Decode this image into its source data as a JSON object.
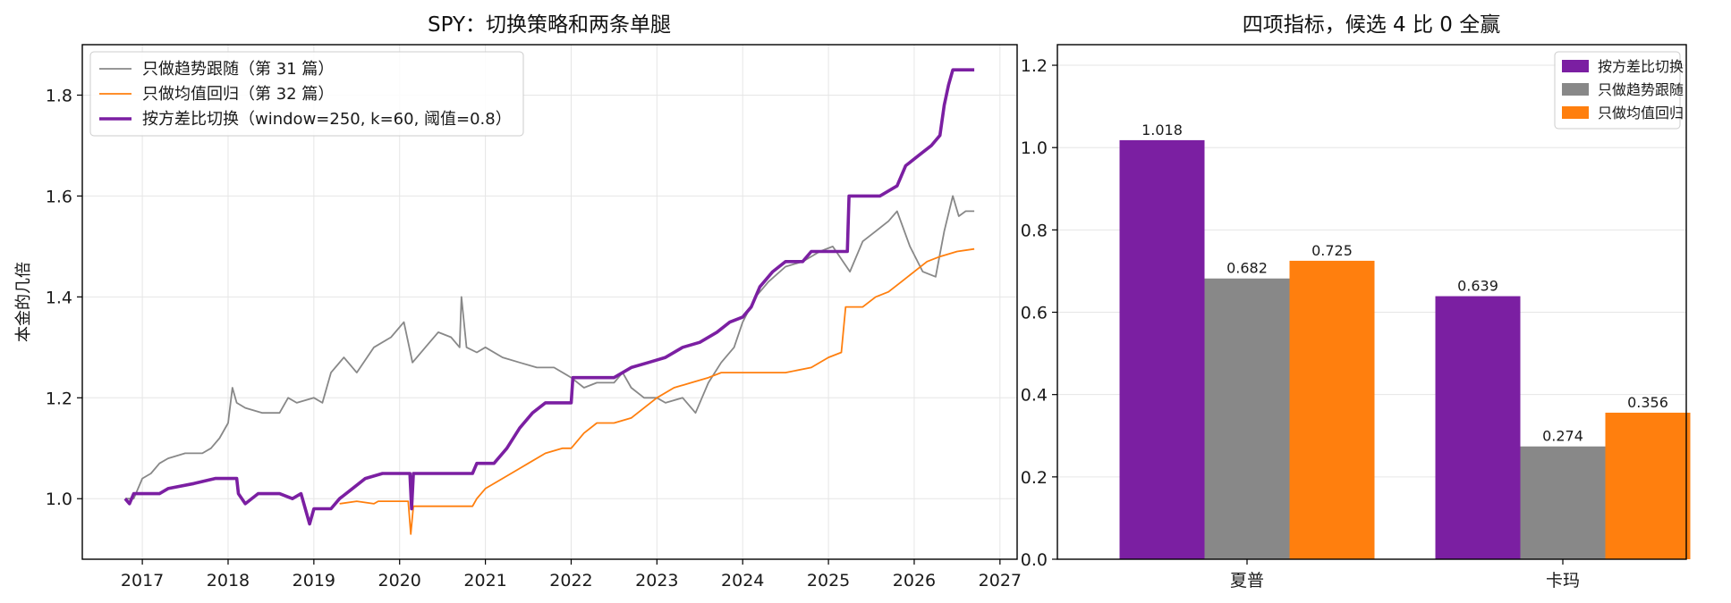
{
  "colors": {
    "trend": "#888888",
    "meanrev": "#ff7f0e",
    "switch": "#7b1fa2",
    "grid": "#e6e6e6",
    "axis": "#000000"
  },
  "chart_data": [
    {
      "type": "line",
      "title": "SPY：切换策略和两条单腿",
      "xlabel": "",
      "ylabel": "本金的几倍",
      "xlim": [
        2016.3,
        2027.2
      ],
      "ylim": [
        0.88,
        1.9
      ],
      "x_ticks": [
        2017,
        2018,
        2019,
        2020,
        2021,
        2022,
        2023,
        2024,
        2025,
        2026,
        2027
      ],
      "x_tick_labels": [
        "2017",
        "2018",
        "2019",
        "2020",
        "2021",
        "2022",
        "2023",
        "2024",
        "2025",
        "2026",
        "2027"
      ],
      "y_ticks": [
        1.0,
        1.2,
        1.4,
        1.6,
        1.8
      ],
      "y_tick_labels": [
        "1.0",
        "1.2",
        "1.4",
        "1.6",
        "1.8"
      ],
      "grid": true,
      "legend_position": "top-left",
      "series": [
        {
          "name": "只做趋势跟随（第 31 篇）",
          "color_key": "trend",
          "style": "thin",
          "points": [
            [
              2016.8,
              1.0
            ],
            [
              2016.9,
              1.0
            ],
            [
              2017.0,
              1.04
            ],
            [
              2017.1,
              1.05
            ],
            [
              2017.2,
              1.07
            ],
            [
              2017.3,
              1.08
            ],
            [
              2017.5,
              1.09
            ],
            [
              2017.7,
              1.09
            ],
            [
              2017.8,
              1.1
            ],
            [
              2017.9,
              1.12
            ],
            [
              2018.0,
              1.15
            ],
            [
              2018.05,
              1.22
            ],
            [
              2018.1,
              1.19
            ],
            [
              2018.2,
              1.18
            ],
            [
              2018.4,
              1.17
            ],
            [
              2018.6,
              1.17
            ],
            [
              2018.7,
              1.2
            ],
            [
              2018.8,
              1.19
            ],
            [
              2019.0,
              1.2
            ],
            [
              2019.1,
              1.19
            ],
            [
              2019.2,
              1.25
            ],
            [
              2019.35,
              1.28
            ],
            [
              2019.5,
              1.25
            ],
            [
              2019.7,
              1.3
            ],
            [
              2019.9,
              1.32
            ],
            [
              2020.05,
              1.35
            ],
            [
              2020.15,
              1.27
            ],
            [
              2020.3,
              1.3
            ],
            [
              2020.45,
              1.33
            ],
            [
              2020.6,
              1.32
            ],
            [
              2020.7,
              1.3
            ],
            [
              2020.72,
              1.4
            ],
            [
              2020.78,
              1.3
            ],
            [
              2020.9,
              1.29
            ],
            [
              2021.0,
              1.3
            ],
            [
              2021.2,
              1.28
            ],
            [
              2021.4,
              1.27
            ],
            [
              2021.6,
              1.26
            ],
            [
              2021.8,
              1.26
            ],
            [
              2022.0,
              1.24
            ],
            [
              2022.15,
              1.22
            ],
            [
              2022.3,
              1.23
            ],
            [
              2022.5,
              1.23
            ],
            [
              2022.6,
              1.25
            ],
            [
              2022.7,
              1.22
            ],
            [
              2022.85,
              1.2
            ],
            [
              2023.0,
              1.2
            ],
            [
              2023.1,
              1.19
            ],
            [
              2023.3,
              1.2
            ],
            [
              2023.45,
              1.17
            ],
            [
              2023.6,
              1.23
            ],
            [
              2023.75,
              1.27
            ],
            [
              2023.9,
              1.3
            ],
            [
              2024.0,
              1.35
            ],
            [
              2024.15,
              1.4
            ],
            [
              2024.3,
              1.43
            ],
            [
              2024.5,
              1.46
            ],
            [
              2024.7,
              1.47
            ],
            [
              2024.9,
              1.49
            ],
            [
              2025.05,
              1.5
            ],
            [
              2025.25,
              1.45
            ],
            [
              2025.4,
              1.51
            ],
            [
              2025.55,
              1.53
            ],
            [
              2025.7,
              1.55
            ],
            [
              2025.8,
              1.57
            ],
            [
              2025.95,
              1.5
            ],
            [
              2026.1,
              1.45
            ],
            [
              2026.25,
              1.44
            ],
            [
              2026.35,
              1.53
            ],
            [
              2026.45,
              1.6
            ],
            [
              2026.52,
              1.56
            ],
            [
              2026.6,
              1.57
            ],
            [
              2026.7,
              1.57
            ]
          ]
        },
        {
          "name": "只做均值回归（第 32 篇）",
          "color_key": "meanrev",
          "style": "thin",
          "points": [
            [
              2019.3,
              0.99
            ],
            [
              2019.5,
              0.995
            ],
            [
              2019.7,
              0.99
            ],
            [
              2019.75,
              0.995
            ],
            [
              2020.0,
              0.995
            ],
            [
              2020.1,
              0.995
            ],
            [
              2020.13,
              0.93
            ],
            [
              2020.16,
              0.985
            ],
            [
              2020.5,
              0.985
            ],
            [
              2020.85,
              0.985
            ],
            [
              2020.9,
              1.0
            ],
            [
              2021.0,
              1.02
            ],
            [
              2021.2,
              1.04
            ],
            [
              2021.4,
              1.06
            ],
            [
              2021.5,
              1.07
            ],
            [
              2021.7,
              1.09
            ],
            [
              2021.9,
              1.1
            ],
            [
              2022.0,
              1.1
            ],
            [
              2022.15,
              1.13
            ],
            [
              2022.3,
              1.15
            ],
            [
              2022.5,
              1.15
            ],
            [
              2022.7,
              1.16
            ],
            [
              2022.85,
              1.18
            ],
            [
              2023.0,
              1.2
            ],
            [
              2023.2,
              1.22
            ],
            [
              2023.4,
              1.23
            ],
            [
              2023.6,
              1.24
            ],
            [
              2023.75,
              1.25
            ],
            [
              2023.9,
              1.25
            ],
            [
              2024.2,
              1.25
            ],
            [
              2024.5,
              1.25
            ],
            [
              2024.8,
              1.26
            ],
            [
              2025.0,
              1.28
            ],
            [
              2025.15,
              1.29
            ],
            [
              2025.2,
              1.38
            ],
            [
              2025.4,
              1.38
            ],
            [
              2025.55,
              1.4
            ],
            [
              2025.7,
              1.41
            ],
            [
              2025.85,
              1.43
            ],
            [
              2026.0,
              1.45
            ],
            [
              2026.15,
              1.47
            ],
            [
              2026.3,
              1.48
            ],
            [
              2026.5,
              1.49
            ],
            [
              2026.7,
              1.495
            ]
          ]
        },
        {
          "name": "按方差比切换（window=250, k=60, 阈值=0.8）",
          "color_key": "switch",
          "style": "thick",
          "points": [
            [
              2016.8,
              1.0
            ],
            [
              2016.85,
              0.99
            ],
            [
              2016.9,
              1.01
            ],
            [
              2017.2,
              1.01
            ],
            [
              2017.3,
              1.02
            ],
            [
              2017.6,
              1.03
            ],
            [
              2017.85,
              1.04
            ],
            [
              2018.1,
              1.04
            ],
            [
              2018.12,
              1.01
            ],
            [
              2018.2,
              0.99
            ],
            [
              2018.35,
              1.01
            ],
            [
              2018.6,
              1.01
            ],
            [
              2018.75,
              1.0
            ],
            [
              2018.85,
              1.01
            ],
            [
              2018.95,
              0.95
            ],
            [
              2019.0,
              0.98
            ],
            [
              2019.2,
              0.98
            ],
            [
              2019.3,
              1.0
            ],
            [
              2019.45,
              1.02
            ],
            [
              2019.6,
              1.04
            ],
            [
              2019.8,
              1.05
            ],
            [
              2020.0,
              1.05
            ],
            [
              2020.12,
              1.05
            ],
            [
              2020.14,
              0.98
            ],
            [
              2020.16,
              1.05
            ],
            [
              2020.6,
              1.05
            ],
            [
              2020.85,
              1.05
            ],
            [
              2020.9,
              1.07
            ],
            [
              2021.1,
              1.07
            ],
            [
              2021.25,
              1.1
            ],
            [
              2021.4,
              1.14
            ],
            [
              2021.55,
              1.17
            ],
            [
              2021.7,
              1.19
            ],
            [
              2021.85,
              1.19
            ],
            [
              2022.0,
              1.19
            ],
            [
              2022.02,
              1.24
            ],
            [
              2022.5,
              1.24
            ],
            [
              2022.7,
              1.26
            ],
            [
              2022.9,
              1.27
            ],
            [
              2023.1,
              1.28
            ],
            [
              2023.3,
              1.3
            ],
            [
              2023.5,
              1.31
            ],
            [
              2023.7,
              1.33
            ],
            [
              2023.85,
              1.35
            ],
            [
              2024.0,
              1.36
            ],
            [
              2024.1,
              1.38
            ],
            [
              2024.2,
              1.42
            ],
            [
              2024.35,
              1.45
            ],
            [
              2024.5,
              1.47
            ],
            [
              2024.7,
              1.47
            ],
            [
              2024.8,
              1.49
            ],
            [
              2025.0,
              1.49
            ],
            [
              2025.22,
              1.49
            ],
            [
              2025.24,
              1.6
            ],
            [
              2025.6,
              1.6
            ],
            [
              2025.8,
              1.62
            ],
            [
              2025.9,
              1.66
            ],
            [
              2026.05,
              1.68
            ],
            [
              2026.2,
              1.7
            ],
            [
              2026.3,
              1.72
            ],
            [
              2026.35,
              1.78
            ],
            [
              2026.4,
              1.82
            ],
            [
              2026.45,
              1.85
            ],
            [
              2026.7,
              1.85
            ]
          ]
        }
      ]
    },
    {
      "type": "bar",
      "title": "四项指标，候选 4 比 0 全赢",
      "xlabel": "",
      "ylabel": "",
      "ylim": [
        0,
        1.25
      ],
      "y_ticks": [
        0.0,
        0.2,
        0.4,
        0.6,
        0.8,
        1.0,
        1.2
      ],
      "y_tick_labels": [
        "0.0",
        "0.2",
        "0.4",
        "0.6",
        "0.8",
        "1.0",
        "1.2"
      ],
      "categories": [
        "夏普",
        "卡玛"
      ],
      "grid": true,
      "legend_position": "top-right",
      "series": [
        {
          "name": "按方差比切换",
          "color_key": "switch",
          "values": [
            1.018,
            0.639
          ],
          "labels": [
            "1.018",
            "0.639"
          ]
        },
        {
          "name": "只做趋势跟随",
          "color_key": "trend",
          "values": [
            0.682,
            0.274
          ],
          "labels": [
            "0.682",
            "0.274"
          ]
        },
        {
          "name": "只做均值回归",
          "color_key": "meanrev",
          "values": [
            0.725,
            0.356
          ],
          "labels": [
            "0.725",
            "0.356"
          ]
        }
      ]
    }
  ]
}
